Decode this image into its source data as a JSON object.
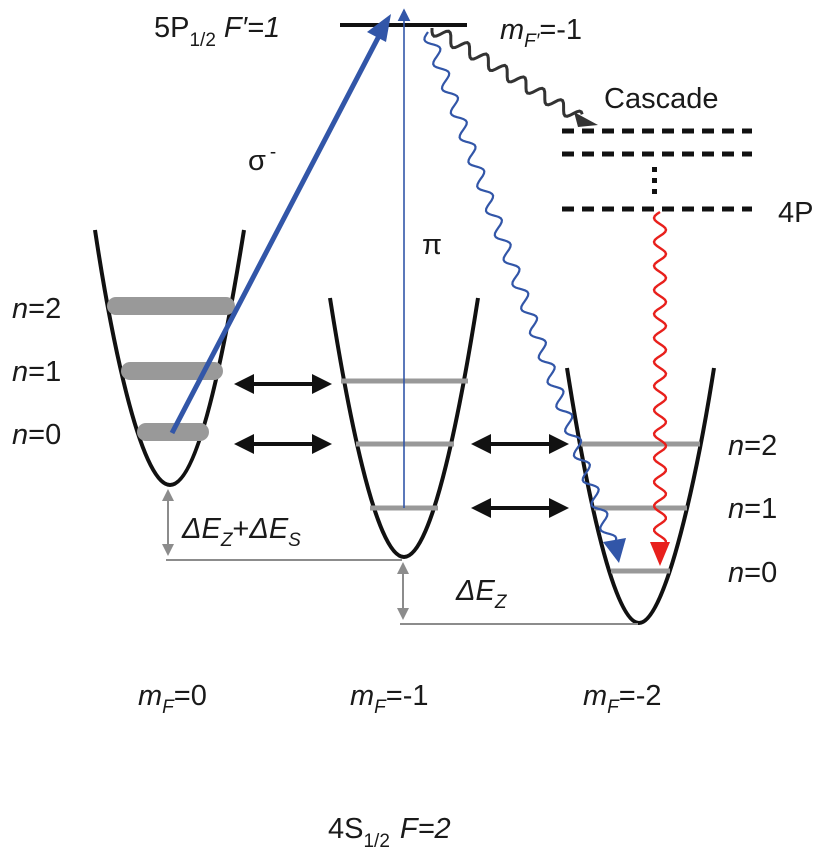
{
  "excited_state": {
    "name": "5P",
    "subscript": "1/2",
    "f_prime": "F′=1"
  },
  "excited_sublevel": {
    "m": "m",
    "sub": "F′",
    "value": "=-1"
  },
  "cascade_label": "Cascade",
  "intermediate_level": "4P",
  "sigma_label": "σ",
  "sigma_sup": "-",
  "pi_label": "π",
  "left_levels": [
    "n=2",
    "n=1",
    "n=0"
  ],
  "right_levels": [
    "n=2",
    "n=1",
    "n=0"
  ],
  "energy_left": {
    "e1": "ΔE",
    "s1": "Z",
    "plus": "+",
    "e2": "ΔE",
    "s2": "S"
  },
  "energy_right": {
    "e": "ΔE",
    "s": "Z"
  },
  "mf_labels": [
    {
      "m": "m",
      "sub": "F",
      "value": "=0"
    },
    {
      "m": "m",
      "sub": "F",
      "value": "=-1"
    },
    {
      "m": "m",
      "sub": "F",
      "value": "=-2"
    }
  ],
  "ground_state": {
    "name": "4S",
    "subscript": "1/2",
    "f": "F=2"
  },
  "colors": {
    "blue": "#3256a8",
    "red": "#e8201c",
    "gray": "#999999",
    "dark_gray": "#8c8c8c",
    "black": "#111111"
  }
}
